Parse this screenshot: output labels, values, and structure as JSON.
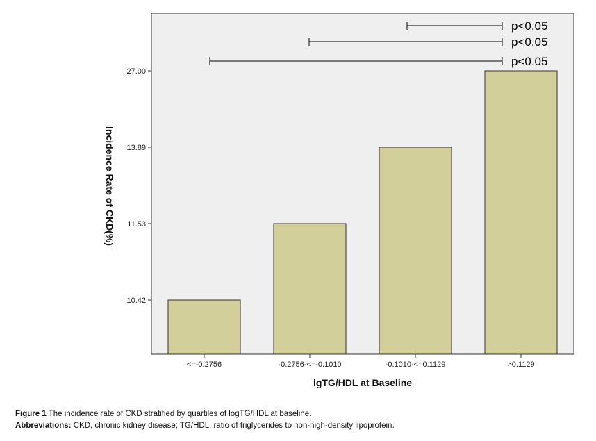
{
  "chart_data": {
    "type": "bar",
    "categories": [
      "<=-0.2756",
      "-0.2756-<=-0.1010",
      "-0.1010-<=0.1129",
      ">0.1129"
    ],
    "values": [
      10.42,
      11.53,
      13.89,
      27.0
    ],
    "ytick_labels": [
      "10.42",
      "11.53",
      "13.89",
      "27.00"
    ],
    "xlabel": "lgTG/HDL at Baseline",
    "ylabel": "Incidence Rate of CKD(%)",
    "bar_color": "#d3cf9a",
    "plot_background": "#efefef",
    "grid": false,
    "significance": [
      {
        "from_category": 2,
        "to_category": 3,
        "label": "p<0.05"
      },
      {
        "from_category": 1,
        "to_category": 3,
        "label": "p<0.05"
      },
      {
        "from_category": 0,
        "to_category": 3,
        "label": "p<0.05"
      }
    ]
  },
  "caption": {
    "figure_label": "Figure 1",
    "figure_text": "The incidence rate of CKD stratified by quartiles of logTG/HDL at baseline.",
    "abbrev_label": "Abbreviations:",
    "abbrev_text": "CKD, chronic kidney disease; TG/HDL, ratio of triglycerides to non-high-density lipoprotein."
  }
}
